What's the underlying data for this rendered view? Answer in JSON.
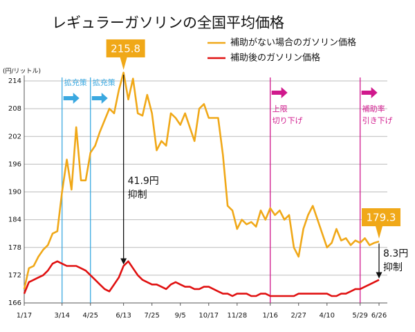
{
  "chart_data": {
    "type": "line",
    "title": "レギュラーガソリンの全国平均価格",
    "y_label": "(円/リットル)",
    "categories": [
      "1/17",
      null,
      null,
      null,
      null,
      null,
      null,
      null,
      "3/14",
      null,
      null,
      null,
      null,
      null,
      "4/25",
      null,
      null,
      null,
      null,
      null,
      null,
      "6/13",
      null,
      null,
      null,
      null,
      null,
      "7/25",
      null,
      null,
      null,
      null,
      null,
      "9/5",
      null,
      null,
      null,
      null,
      null,
      "10/17",
      null,
      null,
      null,
      null,
      null,
      "11/28",
      null,
      null,
      null,
      null,
      null,
      null,
      "1/16",
      null,
      null,
      null,
      null,
      null,
      "2/27",
      null,
      null,
      null,
      null,
      null,
      "4/10",
      null,
      null,
      null,
      null,
      null,
      null,
      "5/29",
      null,
      null,
      null,
      "6/26"
    ],
    "series": [
      {
        "name": "補助がない場合のガソリン価格",
        "color": "#f0a818",
        "highlight": [
          21,
          75
        ],
        "values": [
          169,
          173.5,
          174,
          176,
          177.5,
          178.5,
          181,
          181.5,
          190,
          197,
          190.5,
          204,
          192.5,
          192.5,
          198.5,
          200,
          203,
          205.5,
          208,
          207,
          212,
          215.8,
          210,
          214.5,
          207,
          206.5,
          211,
          207,
          199,
          201,
          200,
          207,
          206,
          204.5,
          207,
          204,
          201,
          208,
          209,
          206,
          206,
          206,
          198,
          187,
          186,
          182,
          184,
          183,
          183.5,
          182.5,
          186,
          184,
          186.5,
          185,
          186,
          184,
          185,
          178,
          176,
          182,
          185,
          187,
          184,
          181,
          178,
          179,
          182,
          179.5,
          180,
          178.5,
          179.5,
          179,
          180,
          178.5,
          179,
          179.3
        ]
      },
      {
        "name": "補助後のガソリン価格",
        "color": "#e01010",
        "values": [
          168,
          170.5,
          171,
          171.5,
          172,
          173,
          174.5,
          175,
          174.5,
          174,
          174,
          174,
          173.5,
          173,
          172,
          171,
          170,
          169,
          168.5,
          170,
          171.5,
          174,
          175,
          173.5,
          172,
          171,
          170.5,
          170,
          170,
          169.5,
          169,
          170,
          170.5,
          170,
          169.5,
          169.5,
          169,
          169,
          169.5,
          169.5,
          169,
          168.5,
          168,
          168,
          167.5,
          168,
          168,
          168,
          167.5,
          167.5,
          168,
          168,
          167.5,
          167.5,
          167.5,
          167.5,
          167.5,
          167.5,
          168,
          168,
          168,
          168,
          168,
          168,
          168,
          167.5,
          167.5,
          168,
          168,
          168.5,
          169,
          169,
          169.5,
          170,
          170.5,
          171
        ]
      }
    ],
    "ylim": [
      166,
      214
    ],
    "yticks": [
      166,
      172,
      178,
      184,
      190,
      196,
      202,
      208,
      214
    ],
    "grid": true,
    "events": [
      {
        "index": 8,
        "color": "#3aa8e0",
        "label": [
          "拡充策"
        ]
      },
      {
        "index": 14,
        "color": "#3aa8e0",
        "label": [
          "拡充策"
        ]
      },
      {
        "index": 52,
        "color": "#d0188c",
        "label": [
          "上限",
          "切り下げ"
        ]
      },
      {
        "index": 71,
        "color": "#d0188c",
        "label": [
          "補助率",
          "引き下げ"
        ]
      }
    ],
    "reductions": [
      {
        "index": 21,
        "label": [
          "41.9円",
          "抑制"
        ]
      },
      {
        "index": 75,
        "label": [
          "8.3円",
          "抑制"
        ]
      }
    ]
  }
}
